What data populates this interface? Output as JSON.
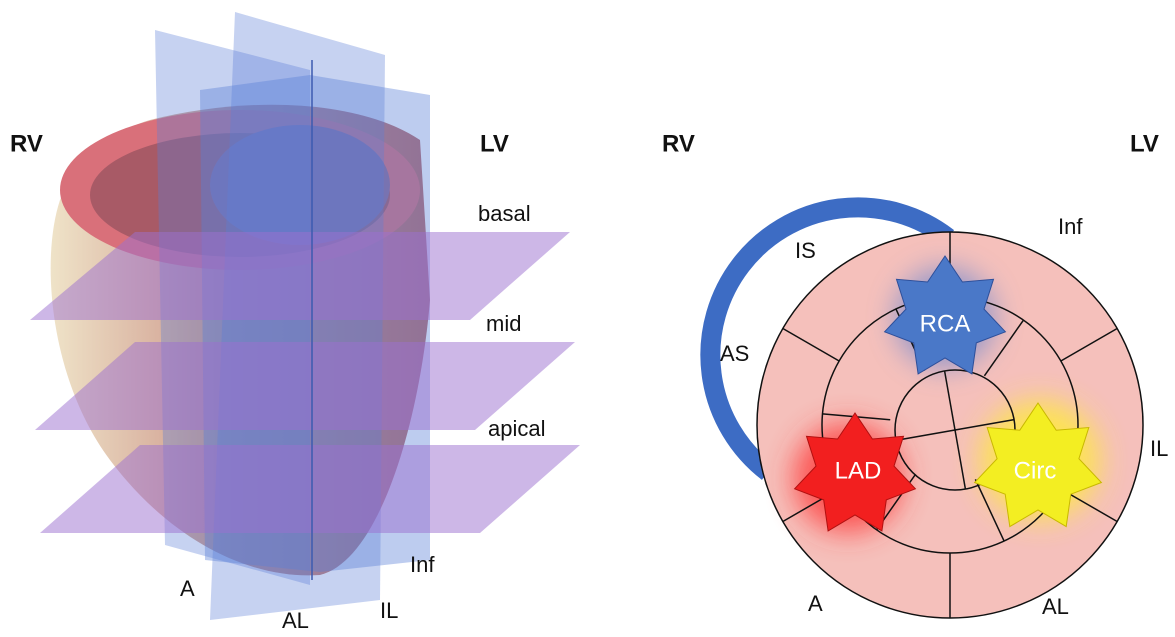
{
  "left_panel": {
    "rv_label": "RV",
    "lv_label": "LV",
    "planes": [
      "basal",
      "mid",
      "apical"
    ],
    "views": [
      "Inf",
      "A",
      "AL",
      "IL"
    ]
  },
  "right_panel": {
    "rv_label": "RV",
    "lv_label": "LV",
    "segments": [
      "IS",
      "Inf",
      "AS",
      "IL",
      "A",
      "AL"
    ],
    "territories": [
      "RCA",
      "LAD",
      "Circ"
    ]
  }
}
